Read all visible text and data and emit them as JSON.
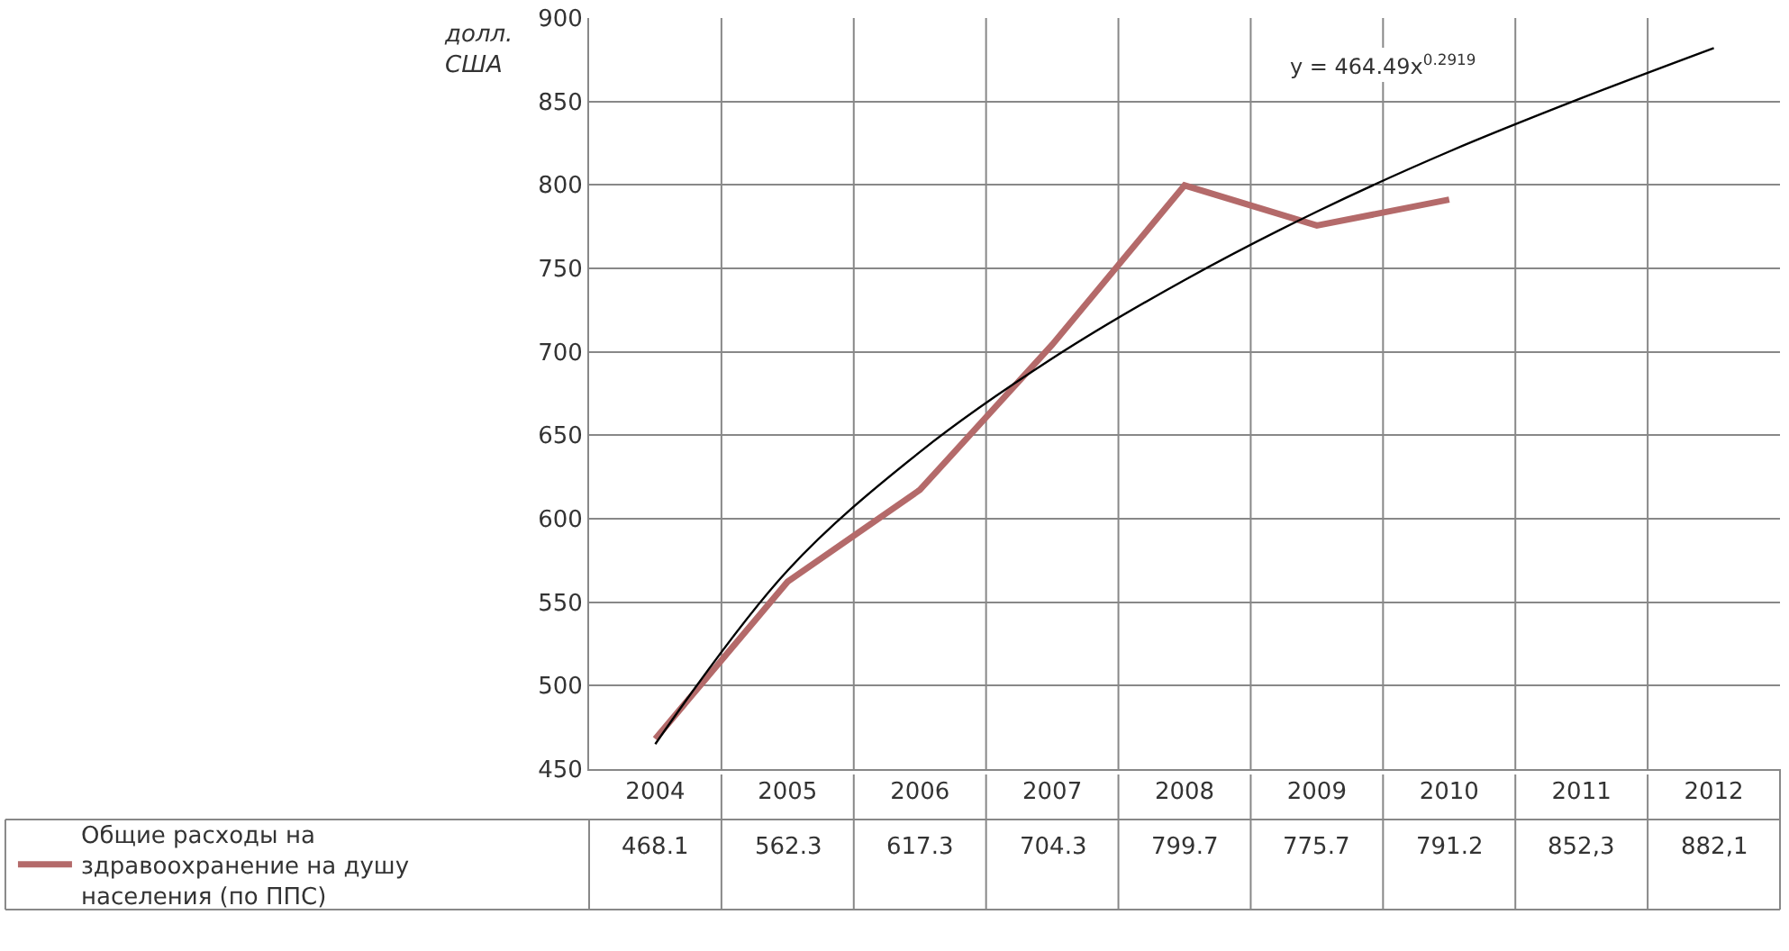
{
  "chart_data": {
    "type": "line",
    "categories": [
      "2004",
      "2005",
      "2006",
      "2007",
      "2008",
      "2009",
      "2010",
      "2011",
      "2012"
    ],
    "series": [
      {
        "name": "Общие расходы на здравоохранение на душу населения (по ППС)",
        "color": "#b46a6a",
        "values": [
          468.1,
          562.3,
          617.3,
          704.3,
          799.7,
          775.7,
          791.2,
          null,
          null
        ],
        "value_labels": [
          "468.1",
          "562.3",
          "617.3",
          "704.3",
          "799.7",
          "775.7",
          "791.2",
          "852,3",
          "882,1"
        ]
      },
      {
        "type": "line",
        "color": "#000000",
        "values": [
          465,
          569,
          640,
          696,
          743,
          784,
          820,
          852,
          882
        ]
      }
    ],
    "annotations": [
      "долл. США",
      "y = 464.49x$^{0.2919}$"
    ],
    "ylim": [
      450,
      900
    ],
    "yticks": [
      450,
      500,
      550,
      600,
      650,
      700,
      750,
      800,
      850,
      900
    ],
    "grid": true,
    "legend": "bottom left",
    "marker": "none",
    "line_style": "solid"
  }
}
